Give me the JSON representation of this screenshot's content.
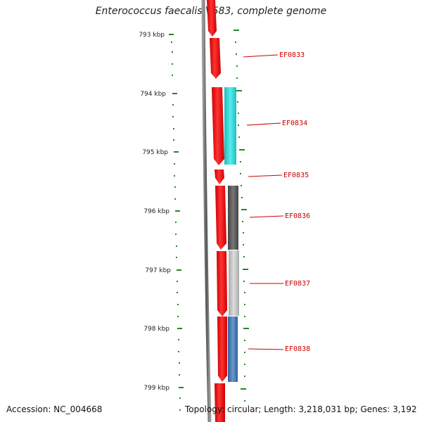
{
  "title": "Enterococcus faecalis V583, complete genome",
  "footer": {
    "accession": "Accession: NC_004668",
    "topology": "Topology: circular; Length: 3,218,031 bp; Genes: 3,192"
  },
  "scale_labels": [
    "793 kbp",
    "794 kbp",
    "795 kbp",
    "796 kbp",
    "797 kbp",
    "798 kbp",
    "799 kbp"
  ],
  "genes": [
    {
      "name": "EF0833",
      "cog_color": null
    },
    {
      "name": "EF0834",
      "cog_color": "#22cccc"
    },
    {
      "name": "EF0835",
      "cog_color": null
    },
    {
      "name": "EF0836",
      "cog_color": "#666666"
    },
    {
      "name": "EF0837",
      "cog_color": "#bbbbbb"
    },
    {
      "name": "EF0838",
      "cog_color": "#4477aa"
    }
  ],
  "colors": {
    "gene_arrow": "#ee1111",
    "backbone": "#777777",
    "tick": "#228822"
  }
}
